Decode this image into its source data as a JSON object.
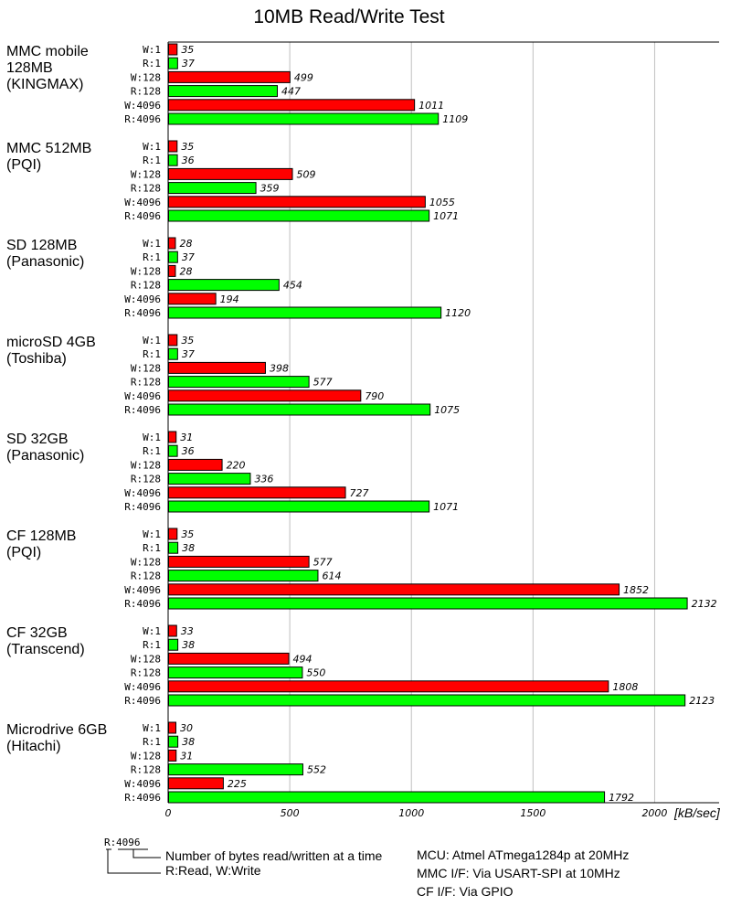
{
  "chart_data": {
    "type": "bar",
    "orientation": "horizontal",
    "title": "10MB Read/Write Test",
    "xlabel": "[kB/sec]",
    "xlim": [
      0,
      2265
    ],
    "xticks": [
      0,
      500,
      1000,
      1500,
      2000
    ],
    "grid": true,
    "colors": {
      "W": "#ff0000",
      "R": "#00ff00"
    },
    "bar_labels": [
      "W:1",
      "R:1",
      "W:128",
      "R:128",
      "W:4096",
      "R:4096"
    ],
    "groups": [
      {
        "name": [
          "MMC mobile",
          "128MB",
          "(KINGMAX)"
        ],
        "values": [
          35,
          37,
          499,
          447,
          1011,
          1109
        ]
      },
      {
        "name": [
          "MMC 512MB",
          "(PQI)"
        ],
        "values": [
          35,
          36,
          509,
          359,
          1055,
          1071
        ]
      },
      {
        "name": [
          "SD 128MB",
          "(Panasonic)"
        ],
        "values": [
          28,
          37,
          28,
          454,
          194,
          1120
        ]
      },
      {
        "name": [
          "microSD 4GB",
          "(Toshiba)"
        ],
        "values": [
          35,
          37,
          398,
          577,
          790,
          1075
        ]
      },
      {
        "name": [
          "SD 32GB",
          "(Panasonic)"
        ],
        "values": [
          31,
          36,
          220,
          336,
          727,
          1071
        ]
      },
      {
        "name": [
          "CF 128MB",
          "(PQI)"
        ],
        "values": [
          35,
          38,
          577,
          614,
          1852,
          2132
        ]
      },
      {
        "name": [
          "CF 32GB",
          "(Transcend)"
        ],
        "values": [
          33,
          38,
          494,
          550,
          1808,
          2123
        ]
      },
      {
        "name": [
          "Microdrive 6GB",
          "(Hitachi)"
        ],
        "values": [
          30,
          38,
          31,
          552,
          225,
          1792
        ]
      }
    ]
  },
  "legend": {
    "sample_prefix": "R:",
    "sample_size": "4096",
    "size_note": "Number of bytes read/written at a time",
    "rw_note": "R:Read, W:Write"
  },
  "notes": [
    "MCU: Atmel ATmega1284p at 20MHz",
    "MMC I/F: Via USART-SPI at 10MHz",
    "CF I/F: Via GPIO"
  ]
}
